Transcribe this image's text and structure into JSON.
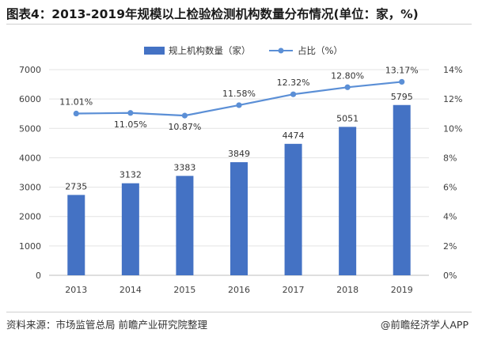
{
  "title": "图表4：2013-2019年规模以上检验检测机构数量分布情况(单位：家，%)",
  "source": "资料来源：市场监管总局 前瞻产业研究院整理",
  "credit": "@前瞻经济学人APP",
  "colors": {
    "bar": "#4472c4",
    "line": "#5b8fd6",
    "grid": "#e3e3e3"
  },
  "chart_data": {
    "type": "bar+line",
    "categories": [
      "2013",
      "2014",
      "2015",
      "2016",
      "2017",
      "2018",
      "2019"
    ],
    "series": [
      {
        "name": "规上机构数量（家）",
        "type": "bar",
        "axis": "left",
        "values": [
          2735,
          3132,
          3383,
          3849,
          4474,
          5051,
          5795
        ],
        "labels": [
          "2735",
          "3132",
          "3383",
          "3849",
          "4474",
          "5051",
          "5795"
        ]
      },
      {
        "name": "占比（%）",
        "type": "line",
        "axis": "right",
        "values": [
          11.01,
          11.05,
          10.87,
          11.58,
          12.32,
          12.8,
          13.17
        ],
        "labels": [
          "11.01%",
          "11.05%",
          "10.87%",
          "11.58%",
          "12.32%",
          "12.80%",
          "13.17%"
        ]
      }
    ],
    "left_axis": {
      "min": 0,
      "max": 7000,
      "step": 1000,
      "ticks": [
        "0",
        "1000",
        "2000",
        "3000",
        "4000",
        "5000",
        "6000",
        "7000"
      ]
    },
    "right_axis": {
      "min": 0,
      "max": 14,
      "step": 2,
      "ticks": [
        "0%",
        "2%",
        "4%",
        "6%",
        "8%",
        "10%",
        "12%",
        "14%"
      ]
    },
    "legend_position": "top-center",
    "grid": true
  }
}
